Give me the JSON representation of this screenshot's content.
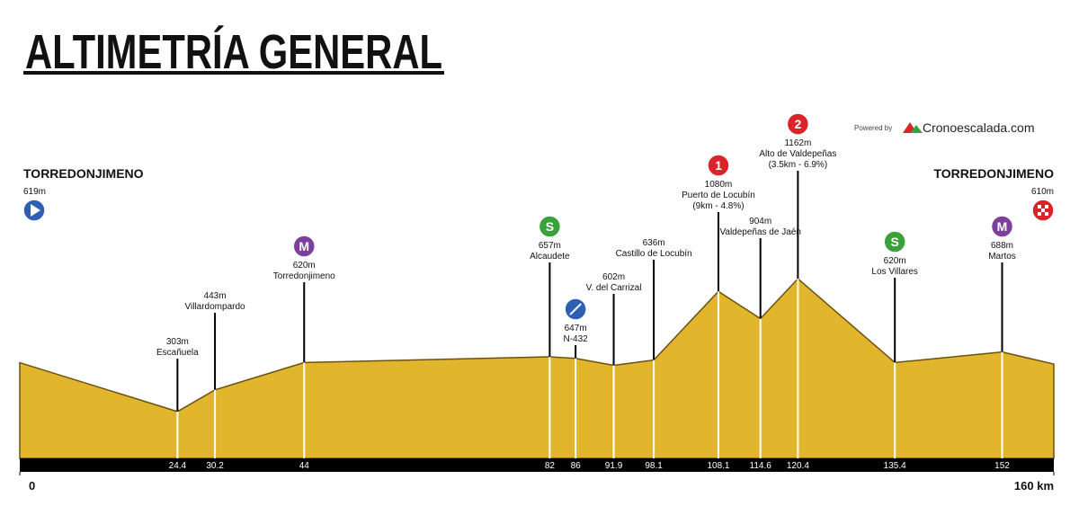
{
  "chart_data": {
    "type": "area",
    "title": "ALTIMETRÍA GENERAL",
    "credit_prefix": "Powered by",
    "credit": "Cronoescalada.com",
    "color": "#e2b62c",
    "x": [
      0,
      24.4,
      30.2,
      44,
      82,
      86,
      91.9,
      98.1,
      108.1,
      114.6,
      120.4,
      135.4,
      152,
      160
    ],
    "values": [
      619,
      303,
      443,
      620,
      657,
      647,
      602,
      636,
      1080,
      904,
      1162,
      620,
      688,
      610
    ],
    "value_labels": [
      "619m",
      "303m",
      "443m",
      "620m",
      "657m",
      "647m",
      "602m",
      "636m",
      "1080m",
      "904m",
      "1162m",
      "620m",
      "688m",
      "610m"
    ],
    "names": [
      "TORREDONJIMENO",
      "Escañuela",
      "Villardompardo",
      "Torredonjimeno",
      "Alcaudete",
      "N-432",
      "V. del Carrizal",
      "Castillo de Locubín",
      "Puerto de Locubín",
      "Valdepeñas de Jaén",
      "Alto de Valdepeñas",
      "Los Villares",
      "Martos",
      "TORREDONJIMENO"
    ],
    "notes": [
      null,
      null,
      null,
      null,
      null,
      null,
      null,
      null,
      "(9km - 4.8%)",
      null,
      "(3.5km - 6.9%)",
      null,
      null,
      null
    ],
    "badges": [
      null,
      null,
      null,
      "M",
      "S",
      null,
      null,
      null,
      "1",
      null,
      "2",
      "S",
      "M",
      null
    ],
    "badge_colors": {
      "M": "#7d3f9e",
      "S": "#3aa23a",
      "1": "#d9252a",
      "2": "#d9252a"
    },
    "xlim": [
      0,
      160
    ],
    "xticks": [
      0,
      24.4,
      30.2,
      44,
      82,
      86,
      91.9,
      98.1,
      108.1,
      114.6,
      120.4,
      135.4,
      152,
      {
        "value": 160,
        "label": "160 km"
      }
    ],
    "ylim": [
      0,
      1500
    ]
  }
}
